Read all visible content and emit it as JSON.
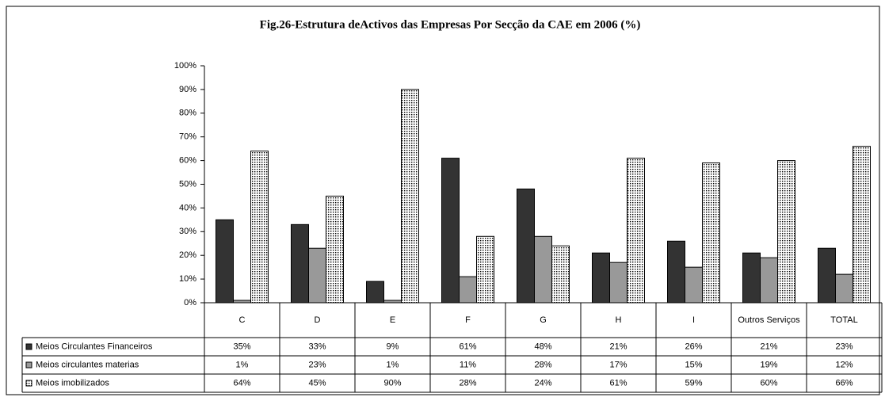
{
  "chart_data": {
    "type": "bar",
    "title": "Fig.26-Estrutura deActivos das Empresas Por Secção da CAE em 2006 (%)",
    "categories": [
      "C",
      "D",
      "E",
      "F",
      "G",
      "H",
      "I",
      "Outros Serviços",
      "TOTAL"
    ],
    "series": [
      {
        "name": "Meios Circulantes Financeiros",
        "color": "#333333",
        "values": [
          35,
          33,
          9,
          61,
          48,
          21,
          26,
          21,
          23
        ],
        "value_labels": [
          "35%",
          "33%",
          "9%",
          "61%",
          "48%",
          "21%",
          "26%",
          "21%",
          "23%"
        ]
      },
      {
        "name": "Meios circulantes materias",
        "color": "#999999",
        "values": [
          1,
          23,
          1,
          11,
          28,
          17,
          15,
          19,
          12
        ],
        "value_labels": [
          "1%",
          "23%",
          "1%",
          "11%",
          "28%",
          "17%",
          "15%",
          "19%",
          "12%"
        ]
      },
      {
        "name": "Meios imobilizados",
        "color": "#000000",
        "dotted": true,
        "values": [
          64,
          45,
          90,
          28,
          24,
          61,
          59,
          60,
          66
        ],
        "value_labels": [
          "64%",
          "45%",
          "90%",
          "28%",
          "24%",
          "61%",
          "59%",
          "60%",
          "66%"
        ]
      }
    ],
    "ylim": [
      0,
      100
    ],
    "yticks": [
      {
        "value": 0,
        "label": "0%"
      },
      {
        "value": 10,
        "label": "10%"
      },
      {
        "value": 20,
        "label": "20%"
      },
      {
        "value": 30,
        "label": "30%"
      },
      {
        "value": 40,
        "label": "40%"
      },
      {
        "value": 50,
        "label": "50%"
      },
      {
        "value": 60,
        "label": "60%"
      },
      {
        "value": 70,
        "label": "70%"
      },
      {
        "value": 80,
        "label": "80%"
      },
      {
        "value": 90,
        "label": "90%"
      },
      {
        "value": 100,
        "label": "100%"
      }
    ],
    "grid": false
  }
}
